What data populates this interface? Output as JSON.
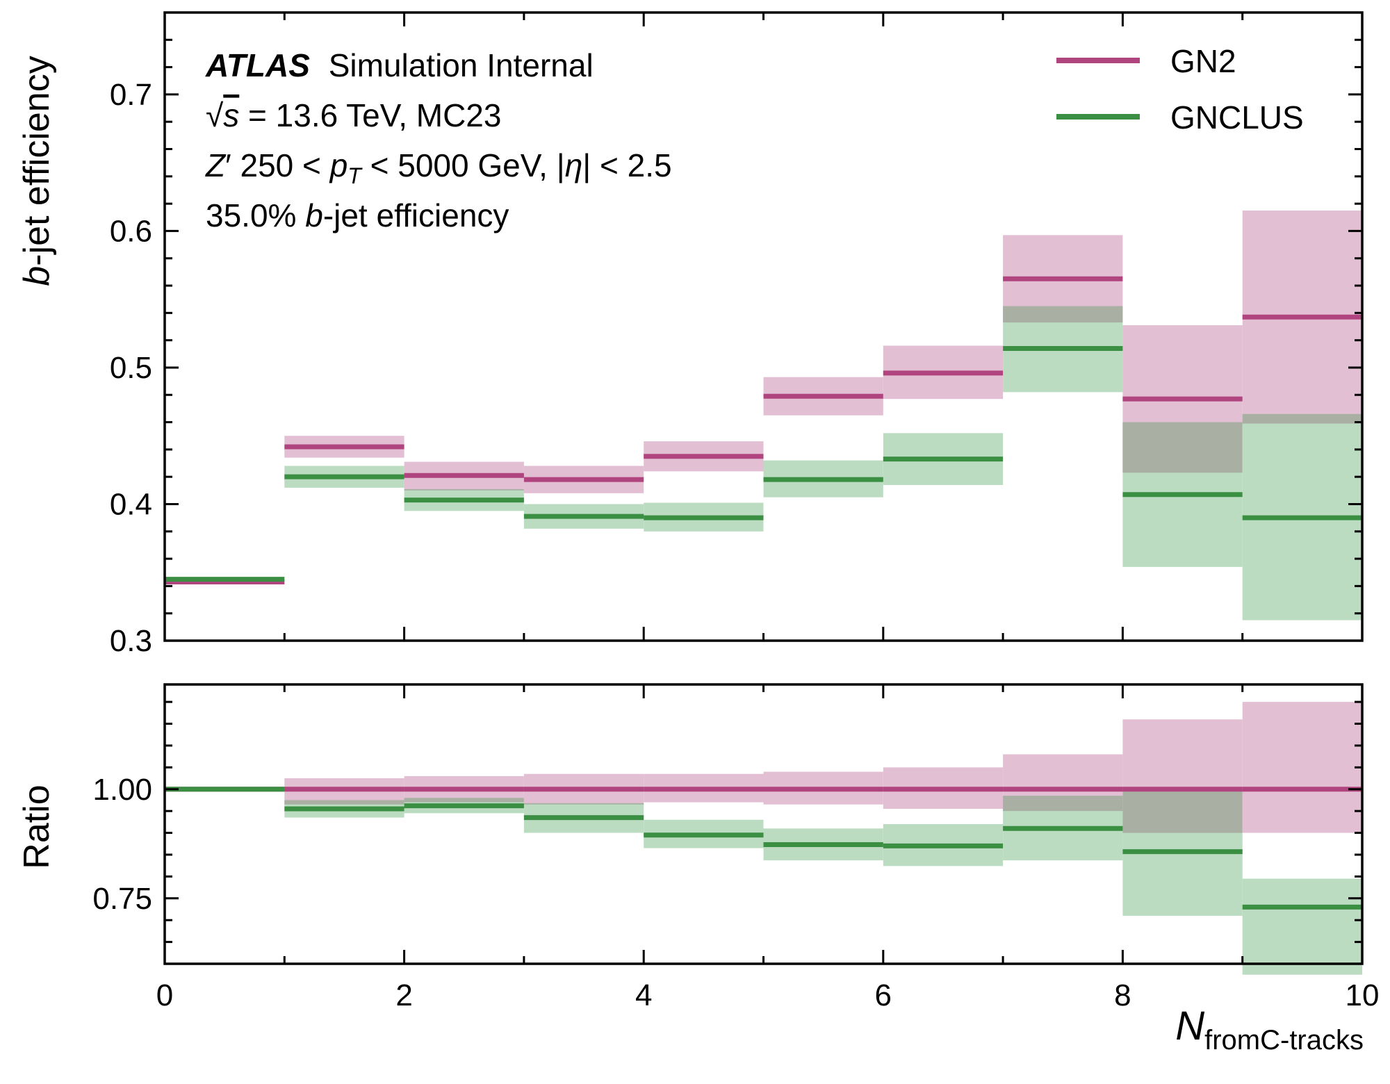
{
  "chart_data": {
    "type": "line",
    "subtype": "step-histogram-with-uncertainty-bands-and-ratio-panel",
    "colors": {
      "GN2": "#b0447f",
      "GNCLUS": "#3a8f43",
      "GN2_band": "#e3bfd4",
      "GNCLUS_band": "#bcdcc2",
      "overlap": "#a9b0a3"
    },
    "info": {
      "experiment": "ATLAS",
      "status": "Simulation Internal",
      "energy_prefix": "√",
      "energy_s": "s",
      "energy_rest": " = 13.6 TeV, MC23",
      "sample_z": "Z",
      "sample_prime": "′",
      "sample_mid": " 250 < ",
      "sample_p": "p",
      "sample_sub": "T",
      "sample_mid2": " < 5000 GeV, |",
      "sample_eta": "η",
      "sample_end": "| < 2.5",
      "wp_pre": "35.0% ",
      "wp_b": "b",
      "wp_post": "-jet efficiency"
    },
    "xlabel_main": "N",
    "xlabel_sub": "fromC-tracks",
    "ylabel_top_b": "b",
    "ylabel_top_rest": "-jet efficiency",
    "ylabel_bottom": "Ratio",
    "xlim": [
      0,
      10
    ],
    "ylim_top": [
      0.3,
      0.76
    ],
    "ylim_bottom": [
      0.6,
      1.24
    ],
    "xticks": [
      0,
      2,
      4,
      6,
      8,
      10
    ],
    "xtick_labels": [
      "0",
      "2",
      "4",
      "6",
      "8",
      "10"
    ],
    "yticks_top": [
      0.3,
      0.4,
      0.5,
      0.6,
      0.7
    ],
    "ytick_labels_top": [
      "0.3",
      "0.4",
      "0.5",
      "0.6",
      "0.7"
    ],
    "yticks_bottom": [
      0.75,
      1.0
    ],
    "ytick_labels_bottom": [
      "0.75",
      "1.00"
    ],
    "legend_position": "top-right",
    "bin_edges": [
      0,
      1,
      2,
      3,
      4,
      5,
      6,
      7,
      8,
      9,
      10
    ],
    "series": [
      {
        "name": "GN2",
        "values": [
          0.343,
          0.442,
          0.421,
          0.418,
          0.435,
          0.479,
          0.496,
          0.565,
          0.477,
          0.537
        ],
        "band_low": [
          0.343,
          0.434,
          0.41,
          0.408,
          0.424,
          0.465,
          0.477,
          0.533,
          0.423,
          0.459
        ],
        "band_high": [
          0.343,
          0.45,
          0.431,
          0.428,
          0.446,
          0.493,
          0.516,
          0.597,
          0.531,
          0.615
        ],
        "ratio": [
          1.0,
          1.0,
          1.0,
          1.0,
          1.0,
          1.0,
          1.0,
          1.0,
          1.0,
          1.0
        ],
        "ratio_low": [
          1.0,
          0.965,
          0.97,
          0.965,
          0.97,
          0.965,
          0.955,
          0.95,
          0.9,
          0.9
        ],
        "ratio_high": [
          1.0,
          1.025,
          1.03,
          1.035,
          1.035,
          1.04,
          1.05,
          1.08,
          1.16,
          1.2
        ]
      },
      {
        "name": "GNCLUS",
        "values": [
          0.345,
          0.42,
          0.403,
          0.391,
          0.39,
          0.418,
          0.433,
          0.514,
          0.407,
          0.39
        ],
        "band_low": [
          0.345,
          0.412,
          0.395,
          0.382,
          0.38,
          0.405,
          0.414,
          0.482,
          0.354,
          0.315
        ],
        "band_high": [
          0.345,
          0.428,
          0.411,
          0.4,
          0.401,
          0.432,
          0.452,
          0.545,
          0.46,
          0.466
        ],
        "ratio": [
          1.0,
          0.955,
          0.962,
          0.935,
          0.895,
          0.873,
          0.87,
          0.91,
          0.857,
          0.73
        ],
        "ratio_low": [
          1.0,
          0.935,
          0.945,
          0.9,
          0.865,
          0.837,
          0.824,
          0.837,
          0.71,
          0.575
        ],
        "ratio_high": [
          1.0,
          0.975,
          0.98,
          0.968,
          0.93,
          0.91,
          0.92,
          0.985,
          1.0,
          0.795
        ]
      }
    ]
  }
}
